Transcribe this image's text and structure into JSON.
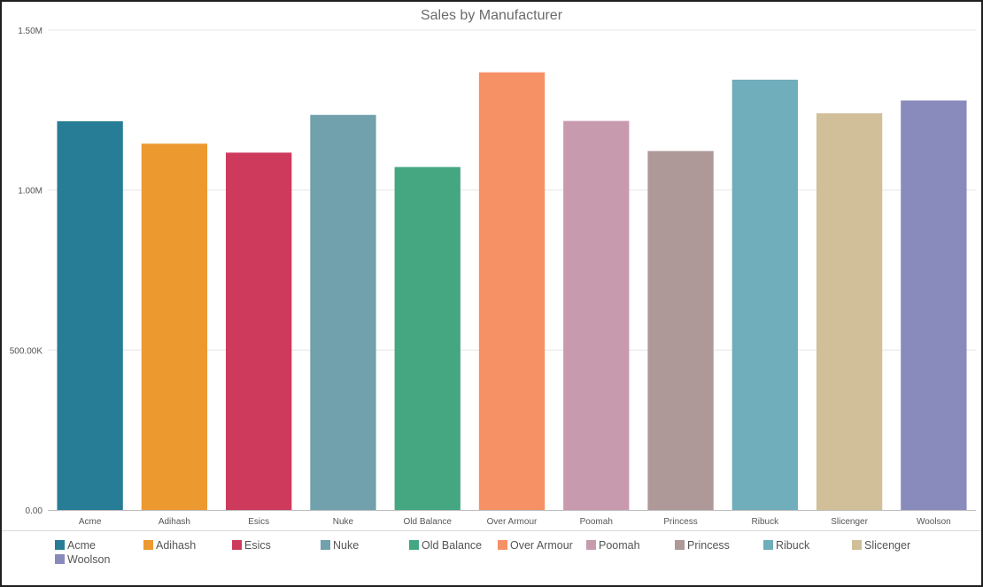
{
  "chart_data": {
    "type": "bar",
    "title": "Sales by Manufacturer",
    "xlabel": "",
    "ylabel": "",
    "ylim": [
      0,
      1500000
    ],
    "yticks": [
      {
        "value": 0,
        "label": "0.00"
      },
      {
        "value": 500000,
        "label": "500.00K"
      },
      {
        "value": 1000000,
        "label": "1.00M"
      },
      {
        "value": 1500000,
        "label": "1.50M"
      }
    ],
    "grid": true,
    "legend_position": "bottom",
    "categories": [
      "Acme",
      "Adihash",
      "Esics",
      "Nuke",
      "Old Balance",
      "Over Armour",
      "Poomah",
      "Princess",
      "Ribuck",
      "Slicenger",
      "Woolson"
    ],
    "values": [
      1215000,
      1145000,
      1117000,
      1235000,
      1072000,
      1368000,
      1216000,
      1122000,
      1345000,
      1240000,
      1280000
    ],
    "colors": [
      "#267D95",
      "#EC9930",
      "#CE3A5C",
      "#70A1AC",
      "#44A781",
      "#F69165",
      "#C89AAE",
      "#AE9998",
      "#6FAEBA",
      "#D0BF98",
      "#898BBD"
    ]
  }
}
